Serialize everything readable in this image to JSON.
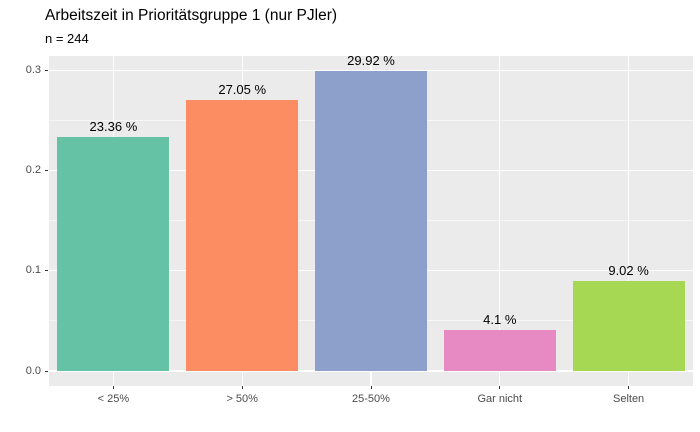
{
  "header": {
    "title": "Arbeitszeit in Prioritätsgruppe 1 (nur PJler)",
    "subtitle": "n = 244"
  },
  "chart_data": {
    "type": "bar",
    "title": "Arbeitszeit in Prioritätsgruppe 1 (nur PJler)",
    "subtitle": "n = 244",
    "categories": [
      "< 25%",
      "> 50%",
      "25-50%",
      "Gar nicht",
      "Selten"
    ],
    "values": [
      0.2336,
      0.2705,
      0.2992,
      0.041,
      0.0902
    ],
    "bar_labels": [
      "23.36 %",
      "27.05 %",
      "29.92 %",
      "4.1 %",
      "9.02 %"
    ],
    "bar_colors": [
      "#66C2A5",
      "#FC8D62",
      "#8DA0CB",
      "#E78AC3",
      "#A6D854"
    ],
    "xlabel": "",
    "ylabel": "",
    "ylim": [
      0,
      0.3
    ],
    "y_ticks": [
      0,
      0.1,
      0.2,
      0.3
    ],
    "y_tick_labels": [
      "0.0",
      "0.1",
      "0.2",
      "0.3"
    ],
    "y_minor_ticks": [
      0.05,
      0.15,
      0.25
    ],
    "grid": true,
    "legend": "none",
    "panel_bg": "#EBEBEB",
    "grid_color": "#FFFFFF",
    "axis_text_color": "#4D4D4D"
  }
}
